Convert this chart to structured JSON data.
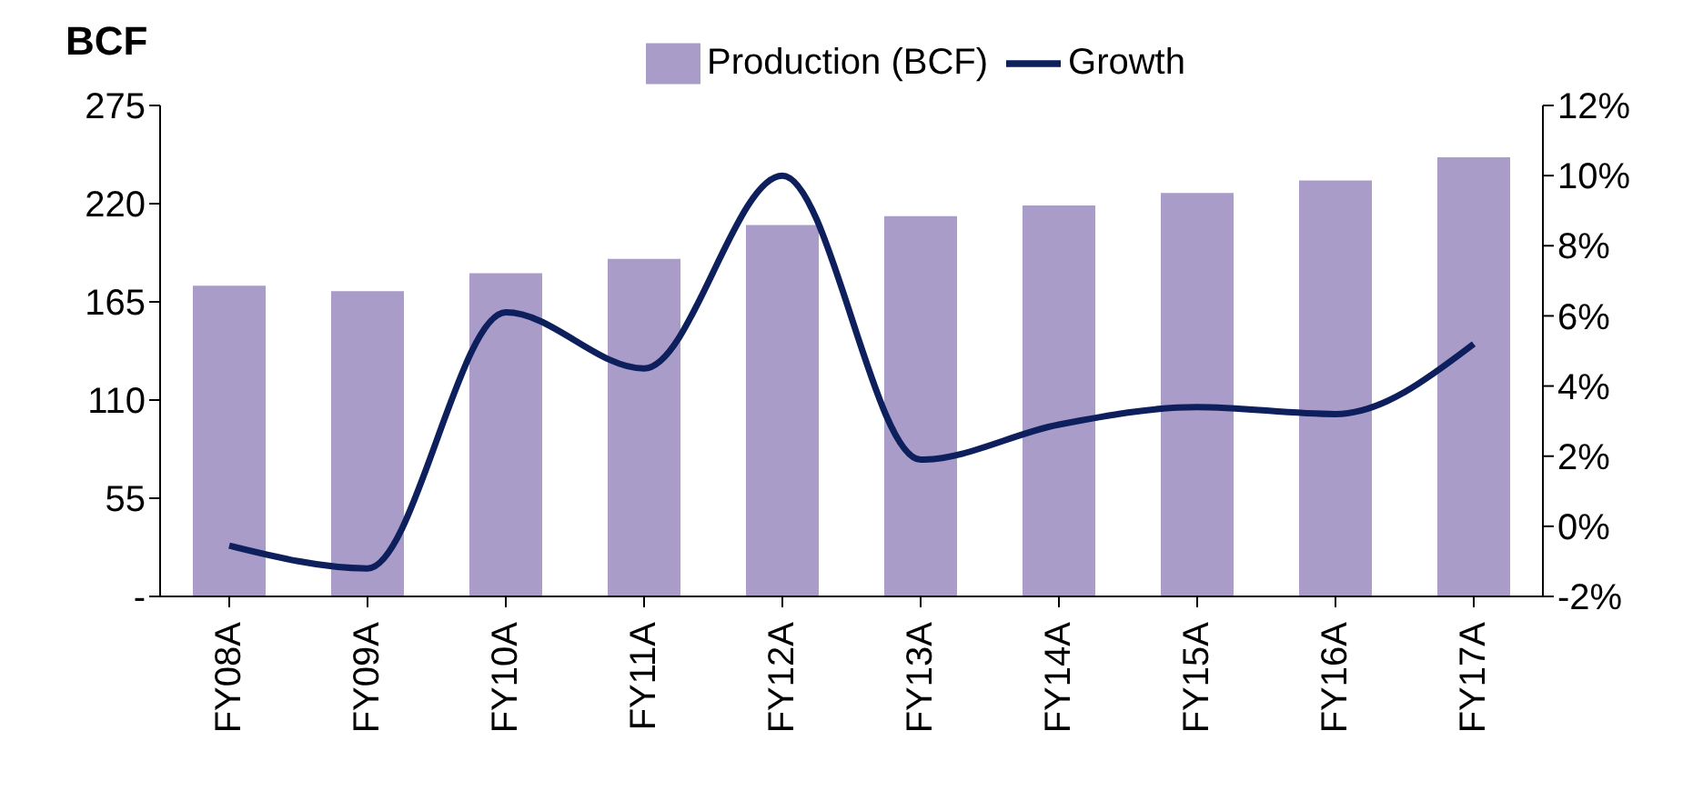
{
  "chart_data": {
    "type": "bar",
    "ylabel": "BCF",
    "categories": [
      "FY08A",
      "FY09A",
      "FY10A",
      "FY11A",
      "FY12A",
      "FY13A",
      "FY14A",
      "FY15A",
      "FY16A",
      "FY17A"
    ],
    "series": [
      {
        "name": "Production (BCF)",
        "color": "#a99cc9",
        "values": [
          174,
          171,
          181,
          189,
          208,
          213,
          219,
          226,
          233,
          246
        ]
      },
      {
        "name": "Growth",
        "type": "line",
        "axis": "y2",
        "color": "#0d1f5c",
        "values": [
          -0.55,
          -1.2,
          6.1,
          4.5,
          10.0,
          1.9,
          2.9,
          3.4,
          3.2,
          5.2
        ]
      }
    ],
    "ylim": [
      0,
      275
    ],
    "yticks": [
      {
        "value": 0,
        "label": "-"
      },
      55,
      110,
      165,
      220,
      275
    ],
    "y2lim": [
      -2,
      12
    ],
    "y2ticks": [
      {
        "value": -2,
        "label": "-2%"
      },
      {
        "value": 0,
        "label": "0%"
      },
      {
        "value": 2,
        "label": "2%"
      },
      {
        "value": 4,
        "label": "4%"
      },
      {
        "value": 6,
        "label": "6%"
      },
      {
        "value": 8,
        "label": "8%"
      },
      {
        "value": 10,
        "label": "10%"
      },
      {
        "value": 12,
        "label": "12%"
      }
    ],
    "grid": false,
    "legend": "top",
    "marker": "none",
    "line_style": "solid"
  }
}
